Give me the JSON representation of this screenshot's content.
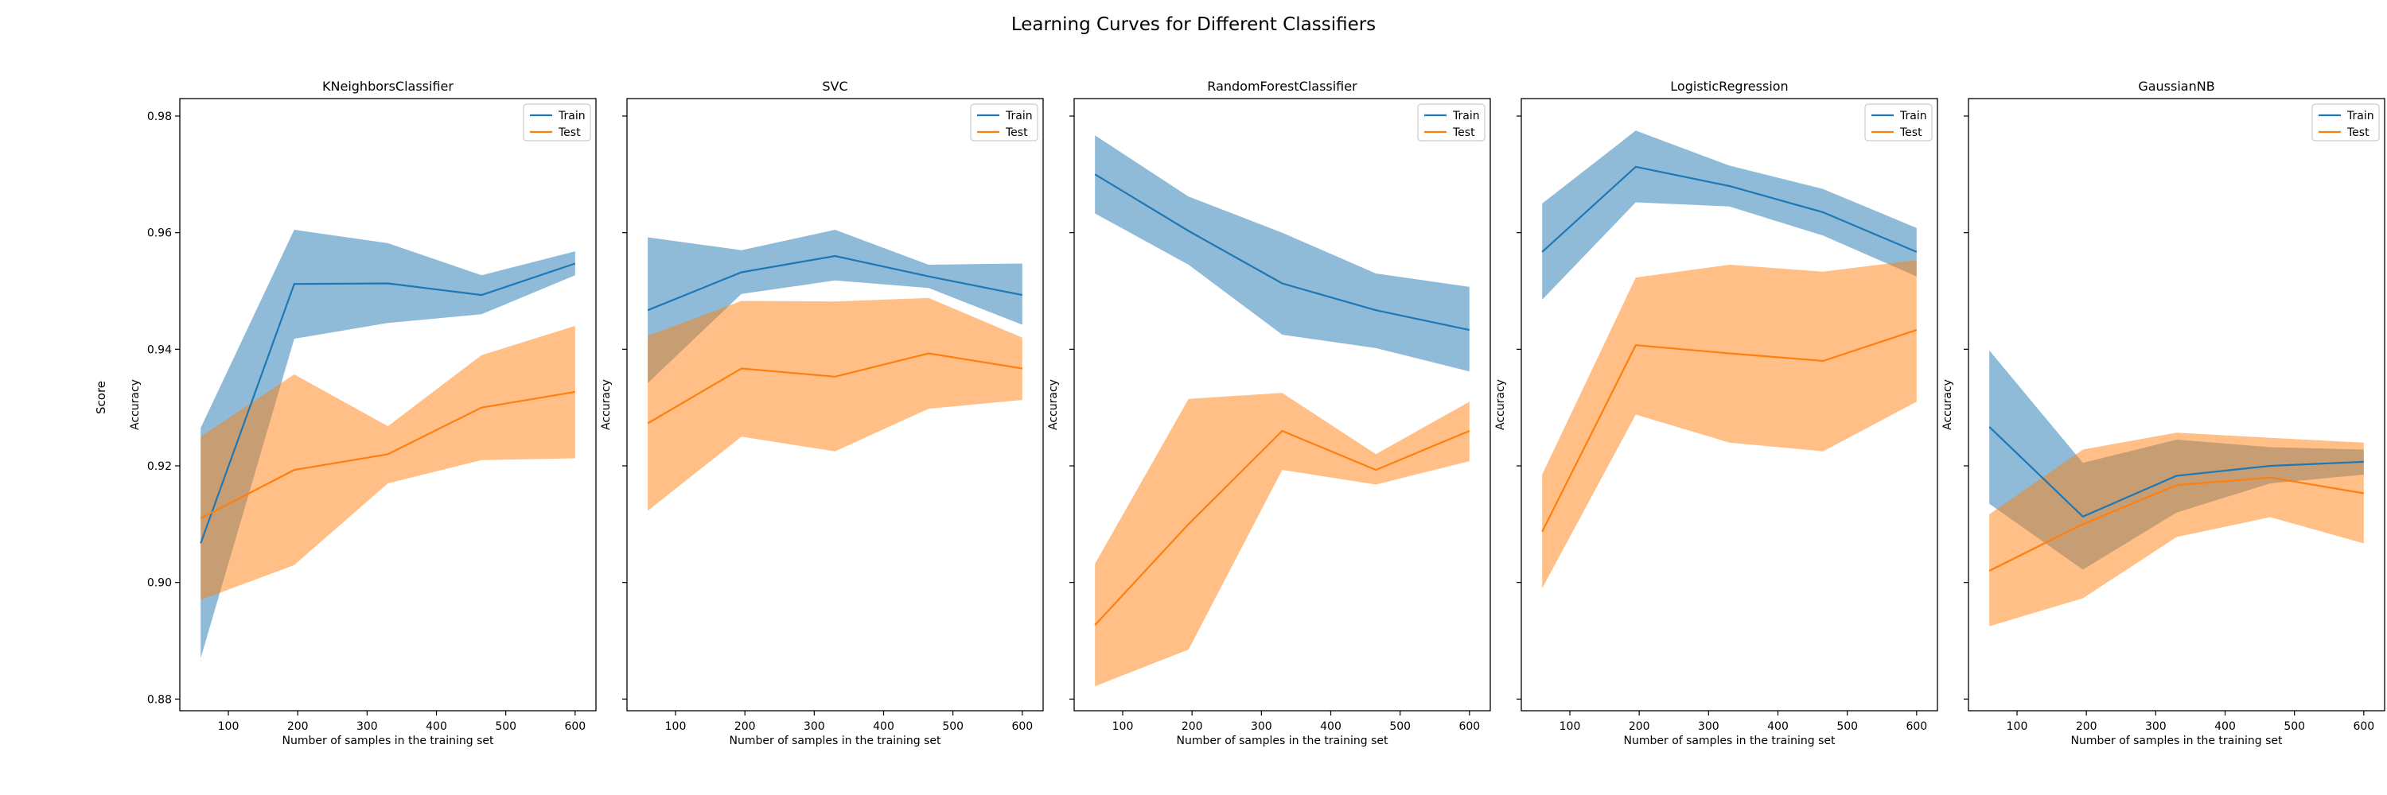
{
  "figure": {
    "suptitle": "Learning Curves for Different Classifiers",
    "ylabel_shared": "Score"
  },
  "chart_data": [
    {
      "type": "line",
      "title": "KNeighborsClassifier",
      "xlabel": "Number of samples in the training set",
      "ylabel": "Accuracy",
      "x": [
        60,
        195,
        330,
        465,
        600
      ],
      "series": [
        {
          "name": "Train",
          "color": "#1f77b4",
          "values": [
            0.9067,
            0.9512,
            0.9513,
            0.9493,
            0.9547
          ],
          "lower": [
            0.887,
            0.9418,
            0.9445,
            0.946,
            0.9527
          ],
          "upper": [
            0.9265,
            0.9605,
            0.9582,
            0.9527,
            0.9568
          ]
        },
        {
          "name": "Test",
          "color": "#ff7f0e",
          "values": [
            0.911,
            0.9193,
            0.922,
            0.93,
            0.9327
          ],
          "lower": [
            0.897,
            0.903,
            0.917,
            0.921,
            0.9213
          ],
          "upper": [
            0.925,
            0.9357,
            0.9268,
            0.939,
            0.944
          ]
        }
      ],
      "xlim": [
        30,
        630
      ],
      "ylim": [
        0.878,
        0.983
      ],
      "xticks": [
        100,
        200,
        300,
        400,
        500,
        600
      ],
      "yticks": [
        0.88,
        0.9,
        0.92,
        0.94,
        0.96,
        0.98
      ],
      "show_ytick_labels": true,
      "grid": false,
      "legend": "top-right"
    },
    {
      "type": "line",
      "title": "SVC",
      "xlabel": "Number of samples in the training set",
      "ylabel": "Accuracy",
      "x": [
        60,
        195,
        330,
        465,
        600
      ],
      "series": [
        {
          "name": "Train",
          "color": "#1f77b4",
          "values": [
            0.9467,
            0.9532,
            0.956,
            0.9525,
            0.9493
          ],
          "lower": [
            0.9342,
            0.9495,
            0.9518,
            0.9505,
            0.9442
          ],
          "upper": [
            0.9592,
            0.957,
            0.9605,
            0.9545,
            0.9547
          ]
        },
        {
          "name": "Test",
          "color": "#ff7f0e",
          "values": [
            0.9273,
            0.9367,
            0.9353,
            0.9393,
            0.9367
          ],
          "lower": [
            0.9123,
            0.925,
            0.9225,
            0.9298,
            0.9313
          ],
          "upper": [
            0.9423,
            0.9483,
            0.9482,
            0.9488,
            0.942
          ]
        }
      ],
      "xlim": [
        30,
        630
      ],
      "ylim": [
        0.878,
        0.983
      ],
      "xticks": [
        100,
        200,
        300,
        400,
        500,
        600
      ],
      "yticks": [
        0.88,
        0.9,
        0.92,
        0.94,
        0.96,
        0.98
      ],
      "show_ytick_labels": false,
      "grid": false,
      "legend": "top-right"
    },
    {
      "type": "line",
      "title": "RandomForestClassifier",
      "xlabel": "Number of samples in the training set",
      "ylabel": "Accuracy",
      "x": [
        60,
        195,
        330,
        465,
        600
      ],
      "series": [
        {
          "name": "Train",
          "color": "#1f77b4",
          "values": [
            0.97,
            0.9603,
            0.9513,
            0.9467,
            0.9433
          ],
          "lower": [
            0.9633,
            0.9545,
            0.9425,
            0.9402,
            0.9362
          ],
          "upper": [
            0.9767,
            0.9662,
            0.96,
            0.953,
            0.9507
          ]
        },
        {
          "name": "Test",
          "color": "#ff7f0e",
          "values": [
            0.8927,
            0.91,
            0.926,
            0.9193,
            0.926
          ],
          "lower": [
            0.8822,
            0.8885,
            0.9193,
            0.9168,
            0.9208
          ],
          "upper": [
            0.9032,
            0.9315,
            0.9325,
            0.922,
            0.931
          ]
        }
      ],
      "xlim": [
        30,
        630
      ],
      "ylim": [
        0.878,
        0.983
      ],
      "xticks": [
        100,
        200,
        300,
        400,
        500,
        600
      ],
      "yticks": [
        0.88,
        0.9,
        0.92,
        0.94,
        0.96,
        0.98
      ],
      "show_ytick_labels": false,
      "grid": false,
      "legend": "top-right"
    },
    {
      "type": "line",
      "title": "LogisticRegression",
      "xlabel": "Number of samples in the training set",
      "ylabel": "Accuracy",
      "x": [
        60,
        195,
        330,
        465,
        600
      ],
      "series": [
        {
          "name": "Train",
          "color": "#1f77b4",
          "values": [
            0.9567,
            0.9713,
            0.968,
            0.9635,
            0.9567
          ],
          "lower": [
            0.9485,
            0.9652,
            0.9645,
            0.9595,
            0.9525
          ],
          "upper": [
            0.965,
            0.9775,
            0.9715,
            0.9675,
            0.9608
          ]
        },
        {
          "name": "Test",
          "color": "#ff7f0e",
          "values": [
            0.9087,
            0.9407,
            0.9393,
            0.938,
            0.9433
          ],
          "lower": [
            0.899,
            0.9288,
            0.924,
            0.9225,
            0.931
          ],
          "upper": [
            0.9185,
            0.9523,
            0.9545,
            0.9533,
            0.9553
          ]
        }
      ],
      "xlim": [
        30,
        630
      ],
      "ylim": [
        0.878,
        0.983
      ],
      "xticks": [
        100,
        200,
        300,
        400,
        500,
        600
      ],
      "yticks": [
        0.88,
        0.9,
        0.92,
        0.94,
        0.96,
        0.98
      ],
      "show_ytick_labels": false,
      "grid": false,
      "legend": "top-right"
    },
    {
      "type": "line",
      "title": "GaussianNB",
      "xlabel": "Number of samples in the training set",
      "ylabel": "Accuracy",
      "x": [
        60,
        195,
        330,
        465,
        600
      ],
      "series": [
        {
          "name": "Train",
          "color": "#1f77b4",
          "values": [
            0.9267,
            0.9113,
            0.9183,
            0.92,
            0.9207
          ],
          "lower": [
            0.9135,
            0.9022,
            0.912,
            0.917,
            0.9185
          ],
          "upper": [
            0.9398,
            0.9205,
            0.9245,
            0.9232,
            0.9228
          ]
        },
        {
          "name": "Test",
          "color": "#ff7f0e",
          "values": [
            0.902,
            0.91,
            0.9167,
            0.918,
            0.9153
          ],
          "lower": [
            0.8925,
            0.8973,
            0.9078,
            0.9112,
            0.9067
          ],
          "upper": [
            0.9117,
            0.9228,
            0.9257,
            0.9248,
            0.924
          ]
        }
      ],
      "xlim": [
        30,
        630
      ],
      "ylim": [
        0.878,
        0.983
      ],
      "xticks": [
        100,
        200,
        300,
        400,
        500,
        600
      ],
      "yticks": [
        0.88,
        0.9,
        0.92,
        0.94,
        0.96,
        0.98
      ],
      "show_ytick_labels": false,
      "grid": false,
      "legend": "top-right"
    }
  ]
}
